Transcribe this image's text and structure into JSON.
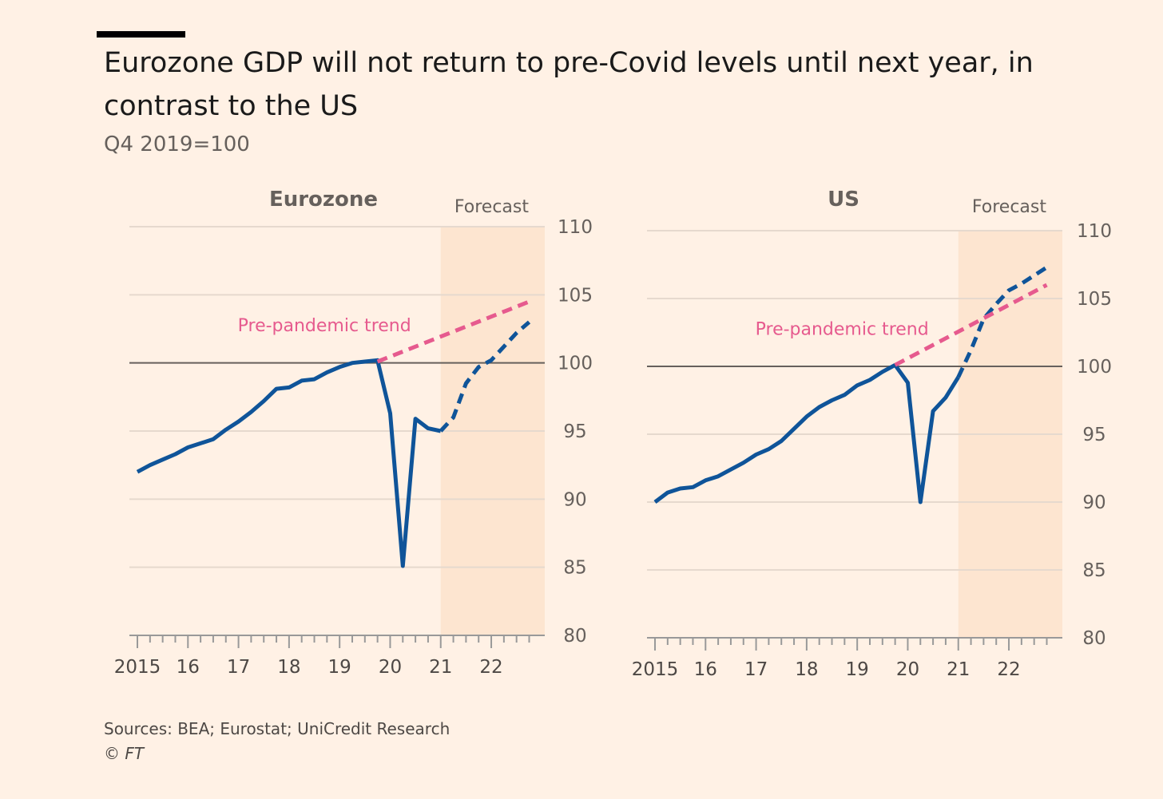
{
  "title": "Eurozone GDP will not return to pre-Covid levels until next year, in contrast to the US",
  "subtitle": "Q4 2019=100",
  "source": "Sources: BEA; Eurostat; UniCredit Research",
  "copyright": "© FT",
  "colors": {
    "background": "#FFF1E5",
    "gdp_line": "#0F5499",
    "trend_line": "#E65A8E",
    "forecast_shade": "#FDE5D0",
    "baseline": "#66605C",
    "grid": "#E6D9CE"
  },
  "chart_data": [
    {
      "type": "line",
      "title": "Eurozone",
      "forecast_label": "Forecast",
      "forecast_start": 2021.0,
      "ylim": [
        80,
        110
      ],
      "yticks": [
        80,
        85,
        90,
        95,
        100,
        105,
        110
      ],
      "xlim": [
        2015.0,
        2022.9
      ],
      "xticks": [
        2015,
        2016,
        2017,
        2018,
        2019,
        2020,
        2021,
        2022
      ],
      "xtick_labels": [
        "2015",
        "16",
        "17",
        "18",
        "19",
        "20",
        "21",
        "22"
      ],
      "baseline": 100,
      "series": [
        {
          "name": "",
          "style": "solid",
          "x": [
            2015.0,
            2015.25,
            2015.5,
            2015.75,
            2016.0,
            2016.25,
            2016.5,
            2016.75,
            2017.0,
            2017.25,
            2017.5,
            2017.75,
            2018.0,
            2018.25,
            2018.5,
            2018.75,
            2019.0,
            2019.25,
            2019.5,
            2019.75,
            2020.0,
            2020.25,
            2020.5,
            2020.75,
            2021.0
          ],
          "y": [
            92.0,
            92.5,
            92.9,
            93.3,
            93.8,
            94.1,
            94.4,
            95.1,
            95.7,
            96.4,
            97.2,
            98.1,
            98.2,
            98.7,
            98.8,
            99.3,
            99.7,
            100.0,
            100.1,
            100.2,
            96.3,
            85.1,
            95.9,
            95.2,
            95.0
          ]
        },
        {
          "name": "",
          "style": "dashed",
          "x": [
            2021.0,
            2021.25,
            2021.5,
            2021.75,
            2022.0,
            2022.25,
            2022.5,
            2022.75
          ],
          "y": [
            95.0,
            96.0,
            98.5,
            99.7,
            100.2,
            101.2,
            102.2,
            103.0
          ]
        },
        {
          "name": "Pre-pandemic trend",
          "style": "dashed",
          "x": [
            2019.75,
            2022.75
          ],
          "y": [
            100.1,
            104.5
          ]
        }
      ],
      "annotations": [
        {
          "text": "Pre-pandemic trend",
          "x": 2018.7,
          "y": 102.8
        }
      ]
    },
    {
      "type": "line",
      "title": "US",
      "forecast_label": "Forecast",
      "forecast_start": 2021.0,
      "ylim": [
        80,
        110
      ],
      "yticks": [
        80,
        85,
        90,
        95,
        100,
        105,
        110
      ],
      "xlim": [
        2015.0,
        2022.9
      ],
      "xticks": [
        2015,
        2016,
        2017,
        2018,
        2019,
        2020,
        2021,
        2022
      ],
      "xtick_labels": [
        "2015",
        "16",
        "17",
        "18",
        "19",
        "20",
        "21",
        "22"
      ],
      "baseline": 100,
      "series": [
        {
          "name": "",
          "style": "solid",
          "x": [
            2015.0,
            2015.25,
            2015.5,
            2015.75,
            2016.0,
            2016.25,
            2016.5,
            2016.75,
            2017.0,
            2017.25,
            2017.5,
            2017.75,
            2018.0,
            2018.25,
            2018.5,
            2018.75,
            2019.0,
            2019.25,
            2019.5,
            2019.75,
            2020.0,
            2020.25,
            2020.5,
            2020.75,
            2021.0
          ],
          "y": [
            90.0,
            90.7,
            91.0,
            91.1,
            91.6,
            91.9,
            92.4,
            92.9,
            93.5,
            93.9,
            94.5,
            95.4,
            96.3,
            97.0,
            97.5,
            97.9,
            98.6,
            99.0,
            99.6,
            100.1,
            98.8,
            90.0,
            96.7,
            97.7,
            99.2
          ]
        },
        {
          "name": "",
          "style": "dashed",
          "x": [
            2021.0,
            2021.25,
            2021.5,
            2021.75,
            2022.0,
            2022.25,
            2022.5,
            2022.75
          ],
          "y": [
            99.2,
            101.2,
            103.5,
            104.6,
            105.6,
            106.1,
            106.7,
            107.3
          ]
        },
        {
          "name": "Pre-pandemic trend",
          "style": "dashed",
          "x": [
            2019.75,
            2022.75
          ],
          "y": [
            100.1,
            106.0
          ]
        }
      ],
      "annotations": [
        {
          "text": "Pre-pandemic trend",
          "x": 2018.7,
          "y": 102.8
        }
      ]
    }
  ]
}
